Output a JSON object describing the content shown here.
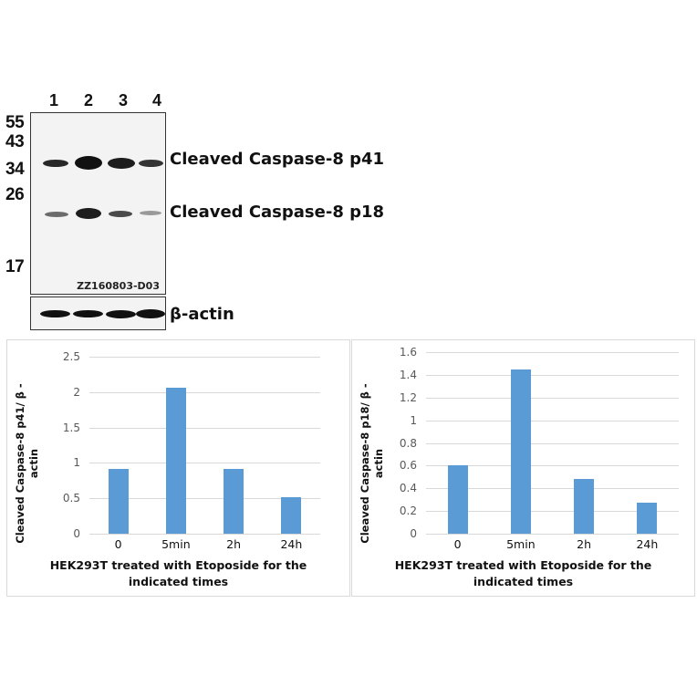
{
  "blot": {
    "lanes": [
      "1",
      "2",
      "3",
      "4"
    ],
    "mw_markers": [
      "55",
      "43",
      "34",
      "26",
      "17"
    ],
    "band_labels": {
      "p41": "Cleaved Caspase-8 p41",
      "p18": "Cleaved Caspase-8 p18",
      "actin": "β-actin"
    },
    "blot_id": "ZZ160803-D03"
  },
  "chart_data": [
    {
      "type": "bar",
      "title": "",
      "categories": [
        "0",
        "5min",
        "2h",
        "24h"
      ],
      "values": [
        0.92,
        2.06,
        0.92,
        0.52
      ],
      "xlabel": "HEK293T treated with Etoposide for the indicated times",
      "ylabel": "Cleaved Caspase-8 p41/ β-actin",
      "ylim": [
        0,
        2.5
      ],
      "yticks": [
        "0",
        "0.5",
        "1",
        "1.5",
        "2",
        "2.5"
      ],
      "grid": true,
      "legend": "none",
      "bar_color": "#5b9bd5"
    },
    {
      "type": "bar",
      "title": "",
      "categories": [
        "0",
        "5min",
        "2h",
        "24h"
      ],
      "values": [
        0.6,
        1.45,
        0.48,
        0.27
      ],
      "xlabel": "HEK293T treated with Etoposide for the indicated times",
      "ylabel": "Cleaved Caspase-8 p18/ β-actin",
      "ylim": [
        0,
        1.6
      ],
      "yticks": [
        "0",
        "0.2",
        "0.4",
        "0.6",
        "0.8",
        "1",
        "1.2",
        "1.4",
        "1.6"
      ],
      "grid": true,
      "legend": "none",
      "bar_color": "#5b9bd5"
    }
  ],
  "charts": {
    "left": {
      "ylabel_line1": "Cleaved Caspase-8 p41/ β -",
      "ylabel_line2": "actin",
      "xlabel_line1": "HEK293T treated with Etoposide for the",
      "xlabel_line2": "indicated times"
    },
    "right": {
      "ylabel_line1": "Cleaved Caspase-8 p18/ β -",
      "ylabel_line2": "actin",
      "xlabel_line1": "HEK293T treated with Etoposide for the",
      "xlabel_line2": "indicated times"
    }
  }
}
